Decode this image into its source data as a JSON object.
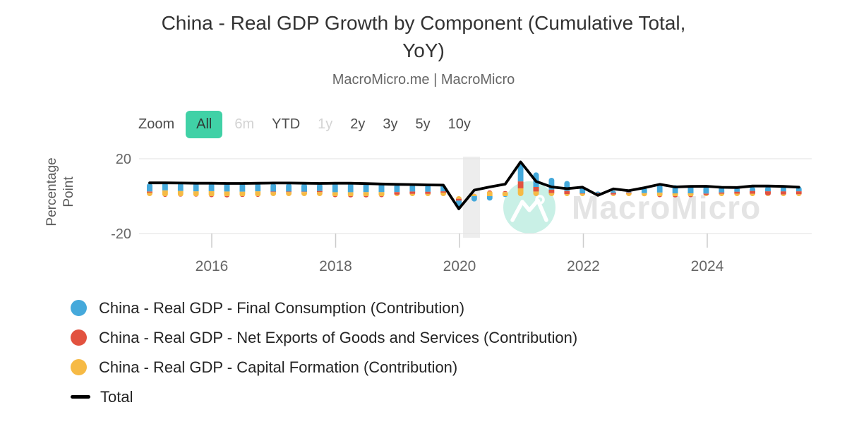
{
  "header": {
    "title": "China - Real GDP Growth by Component (Cumulative Total, YoY)",
    "title_lines": [
      "China - Real GDP Growth by Component (Cumulative Total,",
      "YoY)"
    ],
    "subtitle": "MacroMicro.me | MacroMicro"
  },
  "toolbar": {
    "zoom_label": "Zoom",
    "buttons": [
      {
        "label": "All",
        "state": "active"
      },
      {
        "label": "6m",
        "state": "disabled"
      },
      {
        "label": "YTD",
        "state": "normal"
      },
      {
        "label": "1y",
        "state": "disabled"
      },
      {
        "label": "2y",
        "state": "normal"
      },
      {
        "label": "3y",
        "state": "normal"
      },
      {
        "label": "5y",
        "state": "normal"
      },
      {
        "label": "10y",
        "state": "normal"
      }
    ]
  },
  "watermark": {
    "text": "MacroMicro",
    "logo": "macromicro-mountain-logo"
  },
  "legend": {
    "items": [
      {
        "label": "China - Real GDP - Final Consumption (Contribution)",
        "marker": "circle",
        "color": "#45a9db"
      },
      {
        "label": "China - Real GDP - Net Exports of Goods and Services (Contribution)",
        "marker": "circle",
        "color": "#e2523f"
      },
      {
        "label": "China - Real GDP - Capital Formation (Contribution)",
        "marker": "circle",
        "color": "#f6ba45"
      },
      {
        "label": "Total",
        "marker": "dash",
        "color": "#000000"
      }
    ]
  },
  "colors": {
    "consumption_blue": "#45a9db",
    "net_exports_red": "#e2523f",
    "capital_yellow": "#f6ba45",
    "total_black": "#000000",
    "accent_teal": "#40d1a6",
    "band_gray": "#ededed",
    "gridline_gray": "#e6e6e6",
    "tick_gray": "#cccccc",
    "axis_text_gray": "#666666",
    "watermark_text_gray": "#e4e4e4",
    "watermark_mint": "#c9f0e6"
  },
  "chart_data": {
    "type": "bar",
    "stacked": true,
    "overlay_type": "line",
    "title": "China - Real GDP Growth by Component (Cumulative Total, YoY)",
    "xlabel": "",
    "ylabel": "Percentage Point",
    "ylabel_lines": [
      "Percentage",
      "Point"
    ],
    "unit": "percentage points",
    "ylim": [
      -25,
      25
    ],
    "yticks": [
      20,
      -20
    ],
    "xticks": [
      2016,
      2018,
      2020,
      2022,
      2024
    ],
    "grid": "horizontal-only",
    "legend_position": "bottom-left",
    "highlight_band_x": [
      2020.05,
      2020.35
    ],
    "quarters": [
      "2015 Q1",
      "2015 Q2",
      "2015 Q3",
      "2015 Q4",
      "2016 Q1",
      "2016 Q2",
      "2016 Q3",
      "2016 Q4",
      "2017 Q1",
      "2017 Q2",
      "2017 Q3",
      "2017 Q4",
      "2018 Q1",
      "2018 Q2",
      "2018 Q3",
      "2018 Q4",
      "2019 Q1",
      "2019 Q2",
      "2019 Q3",
      "2019 Q4",
      "2020 Q1",
      "2020 Q2",
      "2020 Q3",
      "2020 Q4",
      "2021 Q1",
      "2021 Q2",
      "2021 Q3",
      "2021 Q4",
      "2022 Q1",
      "2022 Q2",
      "2022 Q3",
      "2022 Q4",
      "2023 Q1",
      "2023 Q2",
      "2023 Q3",
      "2023 Q4",
      "2024 Q1",
      "2024 Q2",
      "2024 Q3",
      "2024 Q4",
      "2025 Q1",
      "2025 Q2",
      "2025 Q3"
    ],
    "series": [
      {
        "name": "China - Real GDP - Final Consumption (Contribution)",
        "role": "stack",
        "color": "#45a9db",
        "values": [
          4.5,
          4.3,
          4.4,
          4.6,
          4.6,
          4.9,
          4.8,
          4.5,
          4.4,
          4.4,
          4.5,
          4.1,
          5.3,
          5.3,
          5.2,
          5.0,
          4.2,
          3.8,
          3.8,
          3.5,
          -4.4,
          -2.9,
          -2.4,
          -0.5,
          10.4,
          7.8,
          6.3,
          5.3,
          3.3,
          0.8,
          1.2,
          1.0,
          3.0,
          4.2,
          4.4,
          4.3,
          3.9,
          3.0,
          2.4,
          2.2,
          2.8,
          2.7,
          2.6
        ]
      },
      {
        "name": "China - Real GDP - Net Exports of Goods and Services (Contribution)",
        "role": "stack",
        "color": "#e2523f",
        "values": [
          0.6,
          -0.4,
          -0.3,
          -0.3,
          -0.6,
          -0.7,
          -0.5,
          -0.4,
          0.3,
          0.3,
          0.2,
          0.6,
          -0.6,
          -0.7,
          -0.7,
          -0.6,
          1.4,
          1.3,
          1.2,
          0.7,
          -1.0,
          0.2,
          0.6,
          0.6,
          3.7,
          2.4,
          1.9,
          1.7,
          0.2,
          0.9,
          1.0,
          0.5,
          -0.1,
          -0.6,
          -0.7,
          -0.6,
          0.8,
          0.7,
          1.1,
          1.5,
          2.1,
          1.7,
          1.6
        ]
      },
      {
        "name": "China - Real GDP - Capital Formation (Contribution)",
        "role": "stack",
        "color": "#f6ba45",
        "values": [
          1.9,
          3.1,
          2.8,
          2.6,
          2.7,
          2.5,
          2.4,
          2.6,
          2.2,
          2.2,
          2.2,
          2.2,
          2.1,
          2.1,
          2.2,
          2.2,
          0.8,
          1.2,
          1.2,
          1.9,
          -1.4,
          1.1,
          2.5,
          2.2,
          4.2,
          2.5,
          1.6,
          1.1,
          1.3,
          0.8,
          0.8,
          1.5,
          1.6,
          1.9,
          1.5,
          1.5,
          0.6,
          1.3,
          1.3,
          1.3,
          0.5,
          0.9,
          1.0
        ]
      },
      {
        "name": "Total",
        "role": "line",
        "color": "#000000",
        "values": [
          7.1,
          7.1,
          7.0,
          6.9,
          6.9,
          6.8,
          6.8,
          6.9,
          7.0,
          7.0,
          6.9,
          6.8,
          6.9,
          6.9,
          6.7,
          6.5,
          6.3,
          6.2,
          6.0,
          5.9,
          -6.8,
          3.2,
          4.9,
          6.4,
          18.3,
          7.9,
          4.9,
          4.0,
          4.8,
          0.4,
          3.9,
          2.9,
          4.5,
          6.3,
          4.9,
          5.2,
          5.3,
          4.7,
          4.6,
          5.4,
          5.4,
          5.2,
          4.8
        ]
      }
    ]
  }
}
